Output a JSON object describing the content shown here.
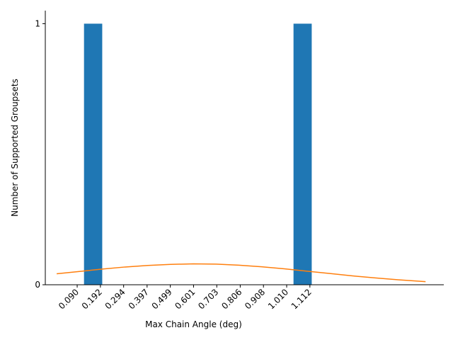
{
  "chart_data": {
    "type": "bar",
    "xlabel": "Max Chain Angle (deg)",
    "ylabel": "Number of Supported Groupsets",
    "x_ticks": [
      "0.090",
      "0.192",
      "0.294",
      "0.397",
      "0.499",
      "0.601",
      "0.703",
      "0.806",
      "0.908",
      "1.010",
      "1.112"
    ],
    "y_ticks": [
      "0",
      "1"
    ],
    "xlim": [
      -0.05,
      1.7
    ],
    "ylim": [
      0,
      1.05
    ],
    "grid": false,
    "bars": [
      {
        "x_start": 0.12,
        "x_end": 0.2,
        "value": 1
      },
      {
        "x_start": 1.04,
        "x_end": 1.12,
        "value": 1
      }
    ],
    "curve": {
      "type": "line",
      "x": [
        -0.0,
        0.1,
        0.2,
        0.3,
        0.4,
        0.5,
        0.6,
        0.7,
        0.8,
        0.9,
        1.0,
        1.1,
        1.2,
        1.3,
        1.4,
        1.5,
        1.62
      ],
      "y": [
        0.042,
        0.051,
        0.06,
        0.068,
        0.074,
        0.078,
        0.08,
        0.079,
        0.075,
        0.069,
        0.061,
        0.052,
        0.043,
        0.034,
        0.026,
        0.019,
        0.012
      ]
    },
    "colors": {
      "bars": "#1f77b4",
      "curve": "#ff7f0e"
    }
  }
}
